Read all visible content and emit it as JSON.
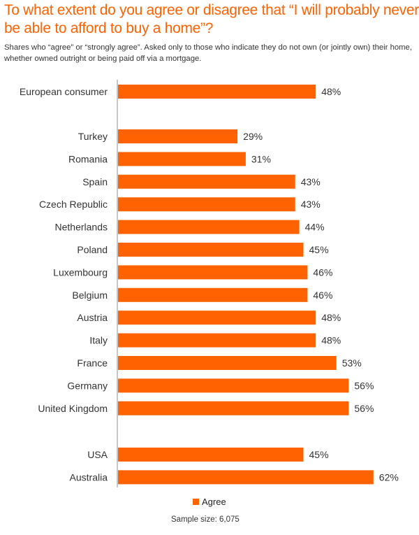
{
  "chart_data": {
    "type": "bar",
    "orientation": "horizontal",
    "title": "To what extent do you agree or disagree that “I will probably never be able to afford to buy a home”?",
    "subtitle": "Shares who “agree” or “strongly agree”. Asked only to those who indicate they do not own (or jointly own) their home, whether owned outright or being paid off via a mortgage.",
    "xlabel": "",
    "ylabel": "",
    "xlim": [
      0,
      62
    ],
    "grid": false,
    "unit": "%",
    "groups": [
      {
        "categories": [
          "European consumer"
        ],
        "values": [
          48
        ]
      },
      {
        "categories": [
          "Turkey",
          "Romania",
          "Spain",
          "Czech Republic",
          "Netherlands",
          "Poland",
          "Luxembourg",
          "Belgium",
          "Austria",
          "Italy",
          "France",
          "Germany",
          "United Kingdom"
        ],
        "values": [
          29,
          31,
          43,
          43,
          44,
          45,
          46,
          46,
          48,
          48,
          53,
          56,
          56
        ]
      },
      {
        "categories": [
          "USA",
          "Australia"
        ],
        "values": [
          45,
          62
        ]
      }
    ],
    "series": [
      {
        "name": "Agree",
        "color": "#FF6200"
      }
    ],
    "legend": {
      "entries": [
        "Agree"
      ],
      "position": "bottom-center"
    },
    "footnote": "Sample size: 6,075"
  }
}
